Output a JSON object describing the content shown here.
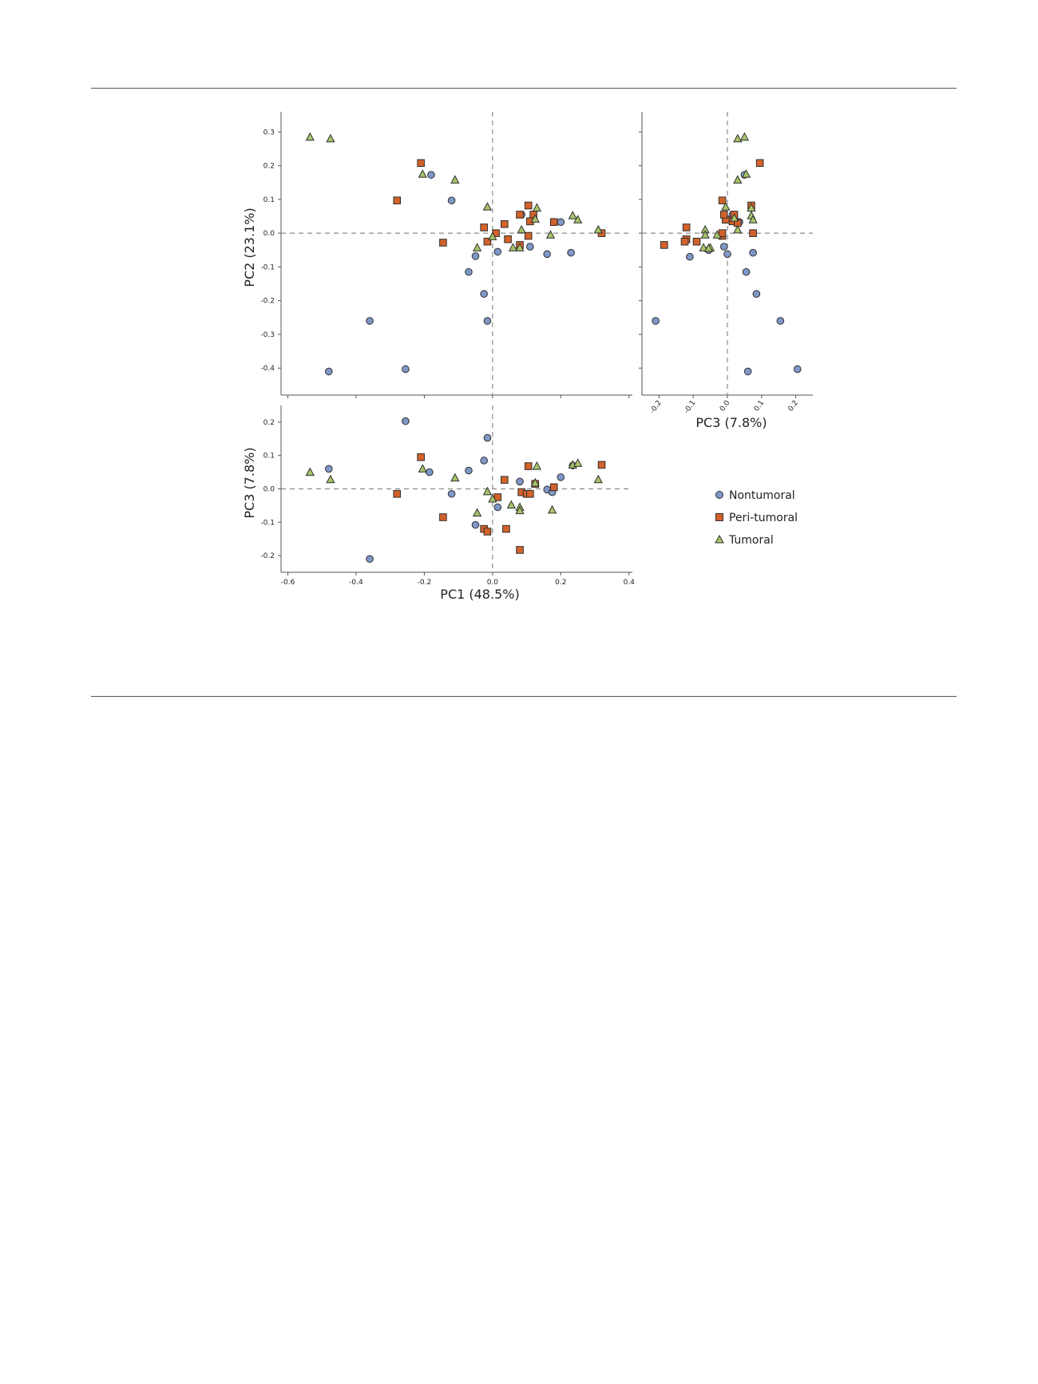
{
  "chart_data": [
    {
      "panel": "top-left",
      "type": "scatter",
      "xlabel": "",
      "ylabel": "PC2 (23.1%)",
      "xlim": [
        -0.62,
        0.41
      ],
      "ylim": [
        -0.48,
        0.36
      ],
      "xticks": [
        "-0.6",
        "-0.4",
        "-0.2",
        "0.0",
        "0.2",
        "0.4"
      ],
      "yticks": [
        "0.3",
        "0.2",
        "0.1",
        "0.0",
        "-0.1",
        "-0.2",
        "-0.3",
        "-0.4"
      ],
      "reference_lines": {
        "x": 0,
        "y": 0,
        "style": "dashed"
      },
      "series": [
        {
          "name": "Nontumoral",
          "marker": "circle",
          "points": [
            [
              -0.18,
              0.173
            ],
            [
              -0.12,
              0.097
            ],
            [
              -0.05,
              -0.068
            ],
            [
              -0.07,
              -0.115
            ],
            [
              -0.025,
              -0.18
            ],
            [
              -0.015,
              -0.26
            ],
            [
              -0.36,
              -0.26
            ],
            [
              -0.48,
              -0.41
            ],
            [
              -0.255,
              -0.403
            ],
            [
              0.085,
              0.055
            ],
            [
              0.015,
              -0.055
            ],
            [
              0.11,
              -0.04
            ],
            [
              0.16,
              -0.062
            ],
            [
              0.2,
              0.033
            ],
            [
              0.23,
              -0.058
            ]
          ]
        },
        {
          "name": "Peri-tumoral",
          "marker": "square",
          "points": [
            [
              -0.21,
              0.208
            ],
            [
              -0.28,
              0.097
            ],
            [
              -0.145,
              -0.028
            ],
            [
              -0.025,
              0.017
            ],
            [
              -0.015,
              -0.025
            ],
            [
              0.01,
              0.0
            ],
            [
              0.035,
              0.027
            ],
            [
              0.045,
              -0.018
            ],
            [
              0.08,
              0.055
            ],
            [
              0.105,
              0.082
            ],
            [
              0.12,
              0.055
            ],
            [
              0.11,
              0.035
            ],
            [
              0.08,
              -0.035
            ],
            [
              0.105,
              -0.008
            ],
            [
              0.18,
              0.033
            ],
            [
              0.32,
              0.0
            ]
          ]
        },
        {
          "name": "Tumoral",
          "marker": "triangle",
          "points": [
            [
              -0.535,
              0.285
            ],
            [
              -0.475,
              0.28
            ],
            [
              -0.205,
              0.175
            ],
            [
              -0.11,
              0.158
            ],
            [
              -0.015,
              0.078
            ],
            [
              -0.045,
              -0.043
            ],
            [
              0.0,
              -0.01
            ],
            [
              0.06,
              -0.043
            ],
            [
              0.08,
              -0.043
            ],
            [
              0.085,
              0.01
            ],
            [
              0.125,
              0.042
            ],
            [
              0.13,
              0.075
            ],
            [
              0.17,
              -0.005
            ],
            [
              0.235,
              0.052
            ],
            [
              0.25,
              0.04
            ],
            [
              0.31,
              0.01
            ]
          ]
        }
      ]
    },
    {
      "panel": "top-right",
      "type": "scatter",
      "xlabel": "PC3 (7.8%)",
      "ylabel": "",
      "xlim": [
        -0.25,
        0.25
      ],
      "ylim": [
        -0.48,
        0.36
      ],
      "xticks": [
        "-0.2",
        "-0.1",
        "0.0",
        "0.1",
        "0.2"
      ],
      "reference_lines": {
        "x": 0,
        "y": 0,
        "style": "dashed"
      },
      "series": [
        {
          "name": "Nontumoral",
          "marker": "circle",
          "points": [
            [
              0.05,
              0.173
            ],
            [
              0.025,
              0.035
            ],
            [
              -0.01,
              -0.04
            ],
            [
              0.0,
              -0.062
            ],
            [
              -0.11,
              -0.07
            ],
            [
              -0.055,
              -0.05
            ],
            [
              0.055,
              -0.115
            ],
            [
              0.075,
              -0.058
            ],
            [
              0.085,
              -0.18
            ],
            [
              0.155,
              -0.26
            ],
            [
              -0.21,
              -0.26
            ],
            [
              0.06,
              -0.41
            ],
            [
              0.205,
              -0.403
            ],
            [
              0.015,
              0.055
            ],
            [
              0.035,
              0.033
            ]
          ]
        },
        {
          "name": "Peri-tumoral",
          "marker": "square",
          "points": [
            [
              0.095,
              0.208
            ],
            [
              -0.015,
              0.097
            ],
            [
              -0.12,
              0.017
            ],
            [
              -0.12,
              -0.018
            ],
            [
              -0.125,
              -0.025
            ],
            [
              -0.185,
              -0.035
            ],
            [
              -0.09,
              -0.025
            ],
            [
              -0.015,
              -0.008
            ],
            [
              0.02,
              0.055
            ],
            [
              0.07,
              0.082
            ],
            [
              0.015,
              0.035
            ],
            [
              0.03,
              0.03
            ],
            [
              -0.005,
              0.04
            ],
            [
              -0.015,
              0.0
            ],
            [
              0.075,
              0.0
            ],
            [
              -0.01,
              0.055
            ]
          ]
        },
        {
          "name": "Tumoral",
          "marker": "triangle",
          "points": [
            [
              0.03,
              0.28
            ],
            [
              0.05,
              0.285
            ],
            [
              0.055,
              0.175
            ],
            [
              0.03,
              0.158
            ],
            [
              -0.005,
              0.078
            ],
            [
              -0.07,
              -0.043
            ],
            [
              -0.065,
              0.01
            ],
            [
              -0.05,
              -0.043
            ],
            [
              -0.03,
              -0.005
            ],
            [
              -0.065,
              -0.005
            ],
            [
              0.03,
              0.01
            ],
            [
              0.07,
              0.075
            ],
            [
              0.07,
              0.052
            ],
            [
              0.075,
              0.04
            ],
            [
              -0.055,
              -0.045
            ],
            [
              0.02,
              0.045
            ]
          ]
        }
      ]
    },
    {
      "panel": "bottom-left",
      "type": "scatter",
      "xlabel": "PC1 (48.5%)",
      "ylabel": "PC3 (7.8%)",
      "xlim": [
        -0.62,
        0.41
      ],
      "ylim": [
        -0.25,
        0.25
      ],
      "xticks": [
        "-0.6",
        "-0.4",
        "-0.2",
        "0.0",
        "0.2",
        "0.4"
      ],
      "yticks": [
        "0.2",
        "0.1",
        "0.0",
        "-0.1",
        "-0.2"
      ],
      "reference_lines": {
        "x": 0,
        "y": 0,
        "style": "dashed"
      },
      "series": [
        {
          "name": "Nontumoral",
          "marker": "circle",
          "points": [
            [
              -0.255,
              0.203
            ],
            [
              -0.48,
              0.06
            ],
            [
              -0.185,
              0.05
            ],
            [
              -0.12,
              -0.015
            ],
            [
              -0.07,
              0.055
            ],
            [
              -0.025,
              0.085
            ],
            [
              -0.015,
              0.153
            ],
            [
              -0.05,
              -0.108
            ],
            [
              0.015,
              -0.055
            ],
            [
              0.08,
              0.022
            ],
            [
              0.16,
              -0.002
            ],
            [
              0.175,
              -0.01
            ],
            [
              0.2,
              0.035
            ],
            [
              0.235,
              0.07
            ],
            [
              -0.36,
              -0.21
            ]
          ]
        },
        {
          "name": "Peri-tumoral",
          "marker": "square",
          "points": [
            [
              -0.21,
              0.095
            ],
            [
              -0.28,
              -0.015
            ],
            [
              -0.145,
              -0.085
            ],
            [
              -0.025,
              -0.12
            ],
            [
              -0.015,
              -0.128
            ],
            [
              0.015,
              -0.025
            ],
            [
              0.035,
              0.027
            ],
            [
              0.04,
              -0.12
            ],
            [
              0.08,
              -0.183
            ],
            [
              0.085,
              -0.01
            ],
            [
              0.1,
              -0.015
            ],
            [
              0.105,
              0.068
            ],
            [
              0.11,
              -0.015
            ],
            [
              0.125,
              0.015
            ],
            [
              0.18,
              0.005
            ],
            [
              0.32,
              0.072
            ]
          ]
        },
        {
          "name": "Tumoral",
          "marker": "triangle",
          "points": [
            [
              -0.535,
              0.05
            ],
            [
              -0.475,
              0.028
            ],
            [
              -0.205,
              0.06
            ],
            [
              -0.11,
              0.033
            ],
            [
              -0.045,
              -0.072
            ],
            [
              -0.015,
              -0.008
            ],
            [
              0.0,
              -0.03
            ],
            [
              0.055,
              -0.048
            ],
            [
              0.08,
              -0.055
            ],
            [
              0.08,
              -0.065
            ],
            [
              0.125,
              0.018
            ],
            [
              0.13,
              0.068
            ],
            [
              0.175,
              -0.063
            ],
            [
              0.235,
              0.072
            ],
            [
              0.25,
              0.077
            ],
            [
              0.31,
              0.028
            ]
          ]
        }
      ]
    }
  ],
  "legend": {
    "items": [
      {
        "label": "Nontumoral",
        "marker": "circle"
      },
      {
        "label": "Peri-tumoral",
        "marker": "square"
      },
      {
        "label": "Tumoral",
        "marker": "triangle"
      }
    ]
  },
  "colors": {
    "Nontumoral": "#7f98c8",
    "Peri-tumoral": "#d2622a",
    "Tumoral": "#a7c46a",
    "edge": "#2f2f2f",
    "axis": "#555555",
    "refline": "#8a8a8a"
  }
}
